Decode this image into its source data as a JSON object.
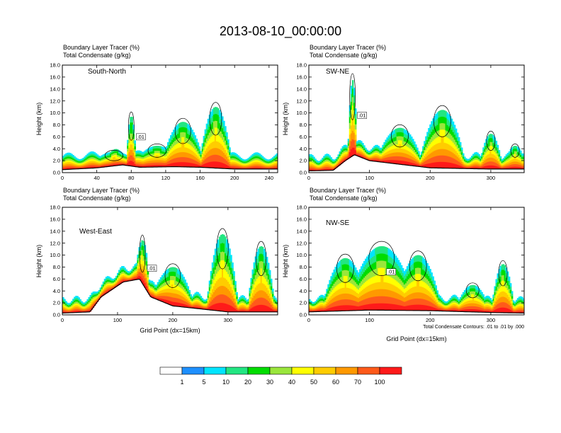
{
  "figure": {
    "title": "2013-08-10_00:00:00",
    "x_axis_label": "Grid Point (dx=15km)",
    "contour_note": "Total Condensate Contours: .01 to .01 by .000"
  },
  "colorbar": {
    "colors": [
      "#ffffff",
      "#1e90ff",
      "#00e5ff",
      "#22e682",
      "#00dd00",
      "#9ae63c",
      "#ffff00",
      "#ffcc00",
      "#ff9900",
      "#ff5a1a",
      "#ff1a1a"
    ],
    "labels": [
      "1",
      "5",
      "10",
      "20",
      "30",
      "40",
      "50",
      "60",
      "70",
      "100"
    ]
  },
  "chart_data": [
    {
      "type": "heatmap",
      "panel": "South-North",
      "subtitle_1": "Boundary Layer Tracer    (%)",
      "subtitle_2": "Total Condensate    (g/kg)",
      "ylabel": "Height (km)",
      "xlabel": "",
      "xlim": [
        0,
        250
      ],
      "ylim": [
        0,
        18
      ],
      "x_ticks": [
        0,
        40,
        80,
        120,
        160,
        200,
        240
      ],
      "y_ticks": [
        "0.0",
        "2.0",
        "4.0",
        "6.0",
        "8.0",
        "10.0",
        "12.0",
        "14.0",
        "16.0",
        "18.0"
      ],
      "terrain": [
        [
          0,
          0.5
        ],
        [
          40,
          0.8
        ],
        [
          70,
          1.3
        ],
        [
          90,
          0.9
        ],
        [
          130,
          1.0
        ],
        [
          160,
          0.9
        ],
        [
          200,
          0.6
        ],
        [
          250,
          0.6
        ]
      ],
      "plumes": [
        {
          "x": 80,
          "top": 9.5,
          "w": 6
        },
        {
          "x": 110,
          "top": 4.5,
          "w": 30
        },
        {
          "x": 140,
          "top": 8.5,
          "w": 26
        },
        {
          "x": 178,
          "top": 11.0,
          "w": 20
        },
        {
          "x": 60,
          "top": 3.5,
          "w": 30
        }
      ],
      "contour_label": ".01"
    },
    {
      "type": "heatmap",
      "panel": "SW-NE",
      "subtitle_1": "Boundary Layer Tracer    (%)",
      "subtitle_2": "Total Condensate    (g/kg)",
      "ylabel": "Height (km)",
      "xlabel": "",
      "xlim": [
        0,
        355
      ],
      "ylim": [
        0,
        18
      ],
      "x_ticks": [
        0,
        100,
        200,
        300
      ],
      "y_ticks": [
        "0.0",
        "2.0",
        "4.0",
        "6.0",
        "8.0",
        "10.0",
        "12.0",
        "14.0",
        "16.0",
        "18.0"
      ],
      "terrain": [
        [
          0,
          0.3
        ],
        [
          40,
          0.4
        ],
        [
          60,
          2.0
        ],
        [
          75,
          3.0
        ],
        [
          100,
          2.0
        ],
        [
          200,
          0.8
        ],
        [
          300,
          0.6
        ],
        [
          355,
          0.6
        ]
      ],
      "plumes": [
        {
          "x": 72,
          "top": 15.5,
          "w": 8
        },
        {
          "x": 150,
          "top": 7.5,
          "w": 40
        },
        {
          "x": 220,
          "top": 10.5,
          "w": 40
        },
        {
          "x": 300,
          "top": 6.5,
          "w": 20
        },
        {
          "x": 340,
          "top": 4.5,
          "w": 20
        }
      ],
      "contour_label": ".01"
    },
    {
      "type": "heatmap",
      "panel": "West-East",
      "subtitle_1": "Boundary Layer Tracer    (%)",
      "subtitle_2": "Total Condensate    (g/kg)",
      "ylabel": "Height (km)",
      "xlabel": "Grid Point (dx=15km)",
      "xlim": [
        0,
        390
      ],
      "ylim": [
        0,
        18
      ],
      "x_ticks": [
        0,
        100,
        200,
        300
      ],
      "y_ticks": [
        "0.0",
        "2.0",
        "4.0",
        "6.0",
        "8.0",
        "10.0",
        "12.0",
        "14.0",
        "16.0",
        "18.0"
      ],
      "terrain": [
        [
          0,
          0.3
        ],
        [
          50,
          0.5
        ],
        [
          70,
          3.0
        ],
        [
          110,
          5.5
        ],
        [
          140,
          6.0
        ],
        [
          160,
          3.0
        ],
        [
          200,
          1.5
        ],
        [
          300,
          0.5
        ],
        [
          390,
          0.5
        ]
      ],
      "plumes": [
        {
          "x": 145,
          "top": 12.5,
          "w": 14
        },
        {
          "x": 200,
          "top": 8.0,
          "w": 40
        },
        {
          "x": 290,
          "top": 13.5,
          "w": 30
        },
        {
          "x": 360,
          "top": 11.5,
          "w": 26
        }
      ],
      "contour_label": ".01"
    },
    {
      "type": "heatmap",
      "panel": "NW-SE",
      "subtitle_1": "Boundary Layer Tracer    (%)",
      "subtitle_2": "Total Condensate    (g/kg)",
      "ylabel": "Height (km)",
      "xlabel": "Grid Point (dx=15km)",
      "xlim": [
        0,
        355
      ],
      "ylim": [
        0,
        18
      ],
      "x_ticks": [
        0,
        100,
        200,
        300
      ],
      "y_ticks": [
        "0.0",
        "2.0",
        "4.0",
        "6.0",
        "8.0",
        "10.0",
        "12.0",
        "14.0",
        "16.0",
        "18.0"
      ],
      "terrain": [
        [
          0,
          0.5
        ],
        [
          100,
          0.8
        ],
        [
          200,
          0.7
        ],
        [
          300,
          0.4
        ],
        [
          355,
          0.3
        ]
      ],
      "plumes": [
        {
          "x": 120,
          "top": 11.5,
          "w": 60
        },
        {
          "x": 60,
          "top": 9.5,
          "w": 40
        },
        {
          "x": 180,
          "top": 10.0,
          "w": 40
        },
        {
          "x": 270,
          "top": 5.0,
          "w": 30
        },
        {
          "x": 320,
          "top": 8.5,
          "w": 20
        }
      ],
      "contour_label": ".01"
    }
  ]
}
